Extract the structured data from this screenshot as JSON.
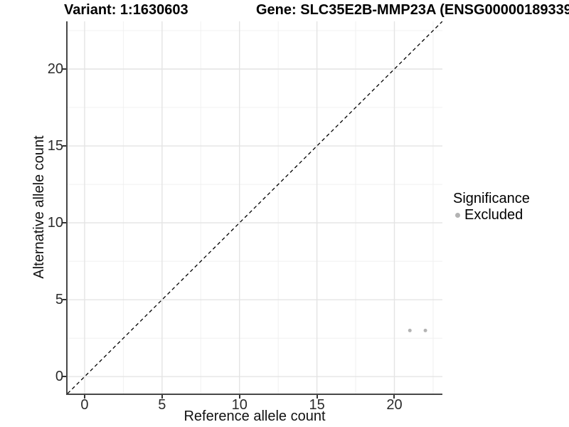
{
  "header": {
    "variant_label": "Variant: 1:1630603",
    "gene_label": "Gene: SLC35E2B-MMP23A (ENSG00000189339"
  },
  "chart_data": {
    "type": "scatter",
    "xlabel": "Reference allele count",
    "ylabel": "Alternative allele count",
    "xlim": [
      -1.1,
      23.1
    ],
    "ylim": [
      -1.1,
      23.1
    ],
    "x_ticks": [
      0,
      5,
      10,
      15,
      20
    ],
    "y_ticks": [
      0,
      5,
      10,
      15,
      20
    ],
    "x_minor_ticks": [
      2.5,
      7.5,
      12.5,
      17.5,
      22.5
    ],
    "y_minor_ticks": [
      2.5,
      7.5,
      12.5,
      17.5,
      22.5
    ],
    "grid": {
      "major_color": "#e4e4e4",
      "minor_color": "#f0f0f0",
      "background": "#ffffff"
    },
    "identity_line": {
      "style": "dashed",
      "color": "#000000",
      "from": [
        -1.1,
        -1.1
      ],
      "to": [
        23.1,
        23.1
      ]
    },
    "series": [
      {
        "name": "Excluded",
        "color": "#b3b3b3",
        "points": [
          [
            21,
            3
          ],
          [
            22,
            3
          ]
        ]
      }
    ],
    "legend": {
      "position": "right",
      "title": "Significance",
      "entries": [
        {
          "label": "Excluded",
          "color": "#b3b3b3"
        }
      ]
    }
  }
}
